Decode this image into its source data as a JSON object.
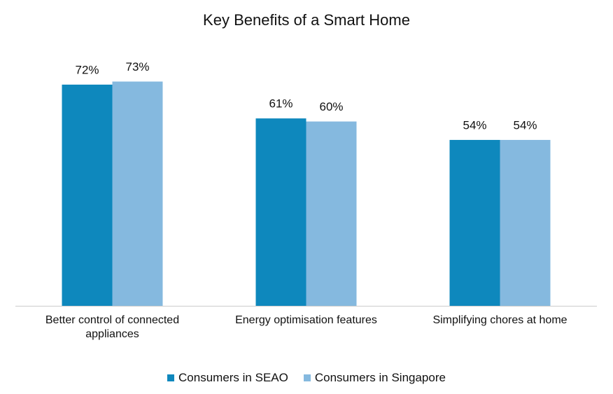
{
  "chart_data": {
    "type": "bar",
    "title": "Key Benefits of a Smart Home",
    "categories": [
      "Better control of connected appliances",
      "Energy optimisation features",
      "Simplifying chores at home"
    ],
    "series": [
      {
        "name": "Consumers in SEAO",
        "color": "#0e88bd",
        "values": [
          72,
          61,
          54
        ],
        "value_labels": [
          "72%",
          "61%",
          "54%"
        ]
      },
      {
        "name": "Consumers in Singapore",
        "color": "#85b9df",
        "values": [
          73,
          60,
          54
        ],
        "value_labels": [
          "73%",
          "60%",
          "54%"
        ]
      }
    ]
  }
}
